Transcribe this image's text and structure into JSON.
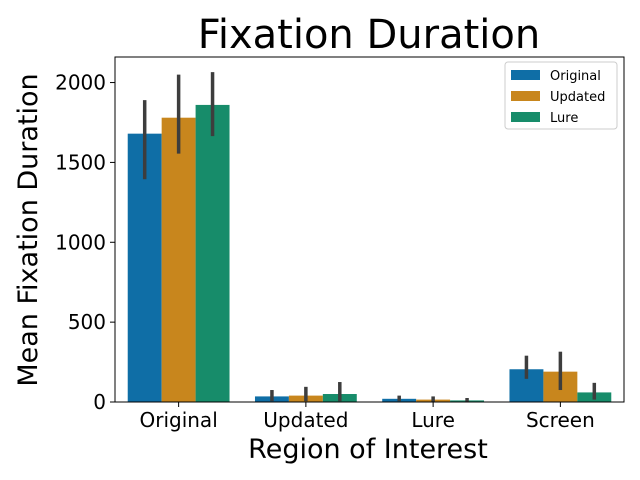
{
  "chart_data": {
    "type": "bar",
    "title": "Fixation Duration",
    "xlabel": "Region of Interest",
    "ylabel": "Mean Fixation Duration",
    "categories": [
      "Original",
      "Updated",
      "Lure",
      "Screen"
    ],
    "ylim": [
      0,
      2160
    ],
    "yticks": [
      0,
      500,
      1000,
      1500,
      2000
    ],
    "grid": false,
    "legend_position": "top-right",
    "series": [
      {
        "name": "Original",
        "color": "#0f6ea6",
        "values": [
          1680,
          35,
          20,
          205
        ],
        "error_low": [
          1395,
          5,
          5,
          145
        ],
        "error_high": [
          1890,
          75,
          40,
          290
        ]
      },
      {
        "name": "Updated",
        "color": "#c8861d",
        "values": [
          1780,
          40,
          15,
          190
        ],
        "error_low": [
          1555,
          5,
          0,
          75
        ],
        "error_high": [
          2050,
          95,
          35,
          315
        ]
      },
      {
        "name": "Lure",
        "color": "#178c6a",
        "values": [
          1860,
          50,
          10,
          60
        ],
        "error_low": [
          1665,
          5,
          0,
          15
        ],
        "error_high": [
          2065,
          125,
          25,
          120
        ]
      }
    ]
  }
}
